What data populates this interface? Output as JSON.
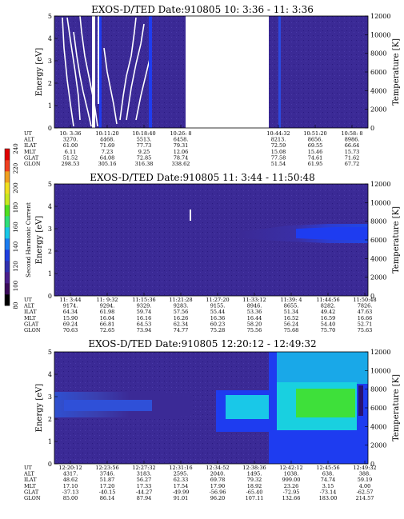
{
  "chart_data": [
    {
      "type": "heatmap",
      "title": "EXOS-D/TED   Date:910805  10: 3:36 - 11: 3:36",
      "ylabel": "Energy [eV]",
      "y2label": "Temperature [K]",
      "ylim": [
        0,
        5
      ],
      "y2lim": [
        0,
        12000
      ],
      "yticks": [
        "0",
        "1",
        "2",
        "3",
        "4",
        "5"
      ],
      "y2ticks": [
        "0",
        "2000",
        "4000",
        "6000",
        "8000",
        "10000",
        "12000"
      ],
      "x_times": [
        "10: 3:36",
        "10:11:20",
        "10:18:40",
        "10:26: 8",
        "10:44:32",
        "10:51:20",
        "10:58: 8"
      ],
      "rows": [
        {
          "label": "UT",
          "values": [
            "10: 3:36",
            "10:11:20",
            "10:18:40",
            "10:26: 8",
            "10:44:32",
            "10:51:20",
            "10:58: 8"
          ]
        },
        {
          "label": "ALT",
          "values": [
            "3270.",
            "4468.",
            "5513.",
            "6458.",
            "8213.",
            "8656.",
            "8986."
          ]
        },
        {
          "label": "ILAT",
          "values": [
            "61.00",
            "71.69",
            "77.73",
            "79.31",
            "72.59",
            "69.55",
            "66.64"
          ]
        },
        {
          "label": "MLT",
          "values": [
            "6.11",
            "7.23",
            "9.25",
            "12.06",
            "15.08",
            "15.46",
            "15.73"
          ]
        },
        {
          "label": "GLAT",
          "values": [
            "51.52",
            "64.08",
            "72.85",
            "78.74",
            "77.58",
            "74.61",
            "71.62"
          ]
        },
        {
          "label": "GLON",
          "values": [
            "298.53",
            "305.16",
            "316.38",
            "338.62",
            "51.54",
            "61.95",
            "67.72"
          ]
        }
      ]
    },
    {
      "type": "heatmap",
      "title": "EXOS-D/TED   Date:910805  11: 3:44 - 11:50:48",
      "ylabel": "Energy [eV]",
      "y2label": "Temperature [K]",
      "ylim": [
        0,
        5
      ],
      "y2lim": [
        0,
        12000
      ],
      "yticks": [
        "0",
        "1",
        "2",
        "3",
        "4",
        "5"
      ],
      "y2ticks": [
        "0",
        "2000",
        "4000",
        "6000",
        "8000",
        "10000",
        "12000"
      ],
      "x_times": [
        "11: 3:44",
        "11: 9:32",
        "11:15:36",
        "11:21:28",
        "11:27:20",
        "11:33:12",
        "11:39: 4",
        "11:44:56",
        "11:50:48"
      ],
      "rows": [
        {
          "label": "UT",
          "values": [
            "11: 3:44",
            "11: 9:32",
            "11:15:36",
            "11:21:28",
            "11:27:20",
            "11:33:12",
            "11:39: 4",
            "11:44:56",
            "11:50:48"
          ]
        },
        {
          "label": "ALT",
          "values": [
            "9174.",
            "9294.",
            "9329.",
            "9283.",
            "9155.",
            "8946.",
            "8655.",
            "8282.",
            "7826."
          ]
        },
        {
          "label": "ILAT",
          "values": [
            "64.34",
            "61.98",
            "59.74",
            "57.56",
            "55.44",
            "53.36",
            "51.34",
            "49.42",
            "47.63"
          ]
        },
        {
          "label": "MLT",
          "values": [
            "15.90",
            "16.04",
            "16.16",
            "16.26",
            "16.36",
            "16.44",
            "16.52",
            "16.59",
            "16.66"
          ]
        },
        {
          "label": "GLAT",
          "values": [
            "69.24",
            "66.81",
            "64.53",
            "62.34",
            "60.23",
            "58.20",
            "56.24",
            "54.40",
            "52.71"
          ]
        },
        {
          "label": "GLON",
          "values": [
            "70.63",
            "72.65",
            "73.94",
            "74.77",
            "75.28",
            "75.56",
            "75.68",
            "75.70",
            "75.63"
          ]
        }
      ]
    },
    {
      "type": "heatmap",
      "title": "EXOS-D/TED   Date:910805  12:20:12 - 12:49:32",
      "ylabel": "Energy [eV]",
      "y2label": "Temperature [K]",
      "ylim": [
        0,
        5
      ],
      "y2lim": [
        0,
        12000
      ],
      "yticks": [
        "0",
        "1",
        "2",
        "3",
        "4",
        "5"
      ],
      "y2ticks": [
        "0",
        "2000",
        "4000",
        "6000",
        "8000",
        "10000",
        "12000"
      ],
      "x_times": [
        "12:20:12",
        "12:23:56",
        "12:27:32",
        "12:31:16",
        "12:34:52",
        "12:38:36",
        "12:42:12",
        "12:45:56",
        "12:49:32"
      ],
      "rows": [
        {
          "label": "UT",
          "values": [
            "12:20:12",
            "12:23:56",
            "12:27:32",
            "12:31:16",
            "12:34:52",
            "12:38:36",
            "12:42:12",
            "12:45:56",
            "12:49:32"
          ]
        },
        {
          "label": "ALT",
          "values": [
            "4317.",
            "3746.",
            "3183.",
            "2595.",
            "2040.",
            "1495.",
            "1038.",
            "638.",
            "388."
          ]
        },
        {
          "label": "ILAT",
          "values": [
            "48.62",
            "51.87",
            "56.27",
            "62.33",
            "69.78",
            "79.32",
            "999.00",
            "74.74",
            "59.19"
          ]
        },
        {
          "label": "MLT",
          "values": [
            "17.10",
            "17.20",
            "17.33",
            "17.54",
            "17.90",
            "18.92",
            "23.26",
            "3.15",
            "4.00"
          ]
        },
        {
          "label": "GLAT",
          "values": [
            "-37.13",
            "-40.15",
            "-44.27",
            "-49.99",
            "-56.96",
            "-65.40",
            "-72.95",
            "-73.14",
            "-62.57"
          ]
        },
        {
          "label": "GLON",
          "values": [
            "85.00",
            "86.14",
            "87.94",
            "91.01",
            "96.20",
            "107.11",
            "132.66",
            "183.00",
            "214.57"
          ]
        }
      ]
    }
  ],
  "colorbar": {
    "label": "Second Harmonic Current",
    "ticks": [
      "80",
      "100",
      "120",
      "140",
      "160",
      "180",
      "200",
      "220",
      "240"
    ],
    "colors": [
      "#000000",
      "#3a0a5a",
      "#4a1f8c",
      "#3030b0",
      "#1f3fe0",
      "#1a7cf0",
      "#19c8e8",
      "#2ee07a",
      "#50e020",
      "#c8e820",
      "#f0e020",
      "#f0a020",
      "#f04020",
      "#e00000"
    ]
  },
  "colors": {
    "background": "#3b2a96",
    "deep": "#2a1270",
    "blue": "#1e3cf0",
    "cyan": "#1fe0f0",
    "green": "#3ee03a",
    "white": "#ffffff"
  }
}
